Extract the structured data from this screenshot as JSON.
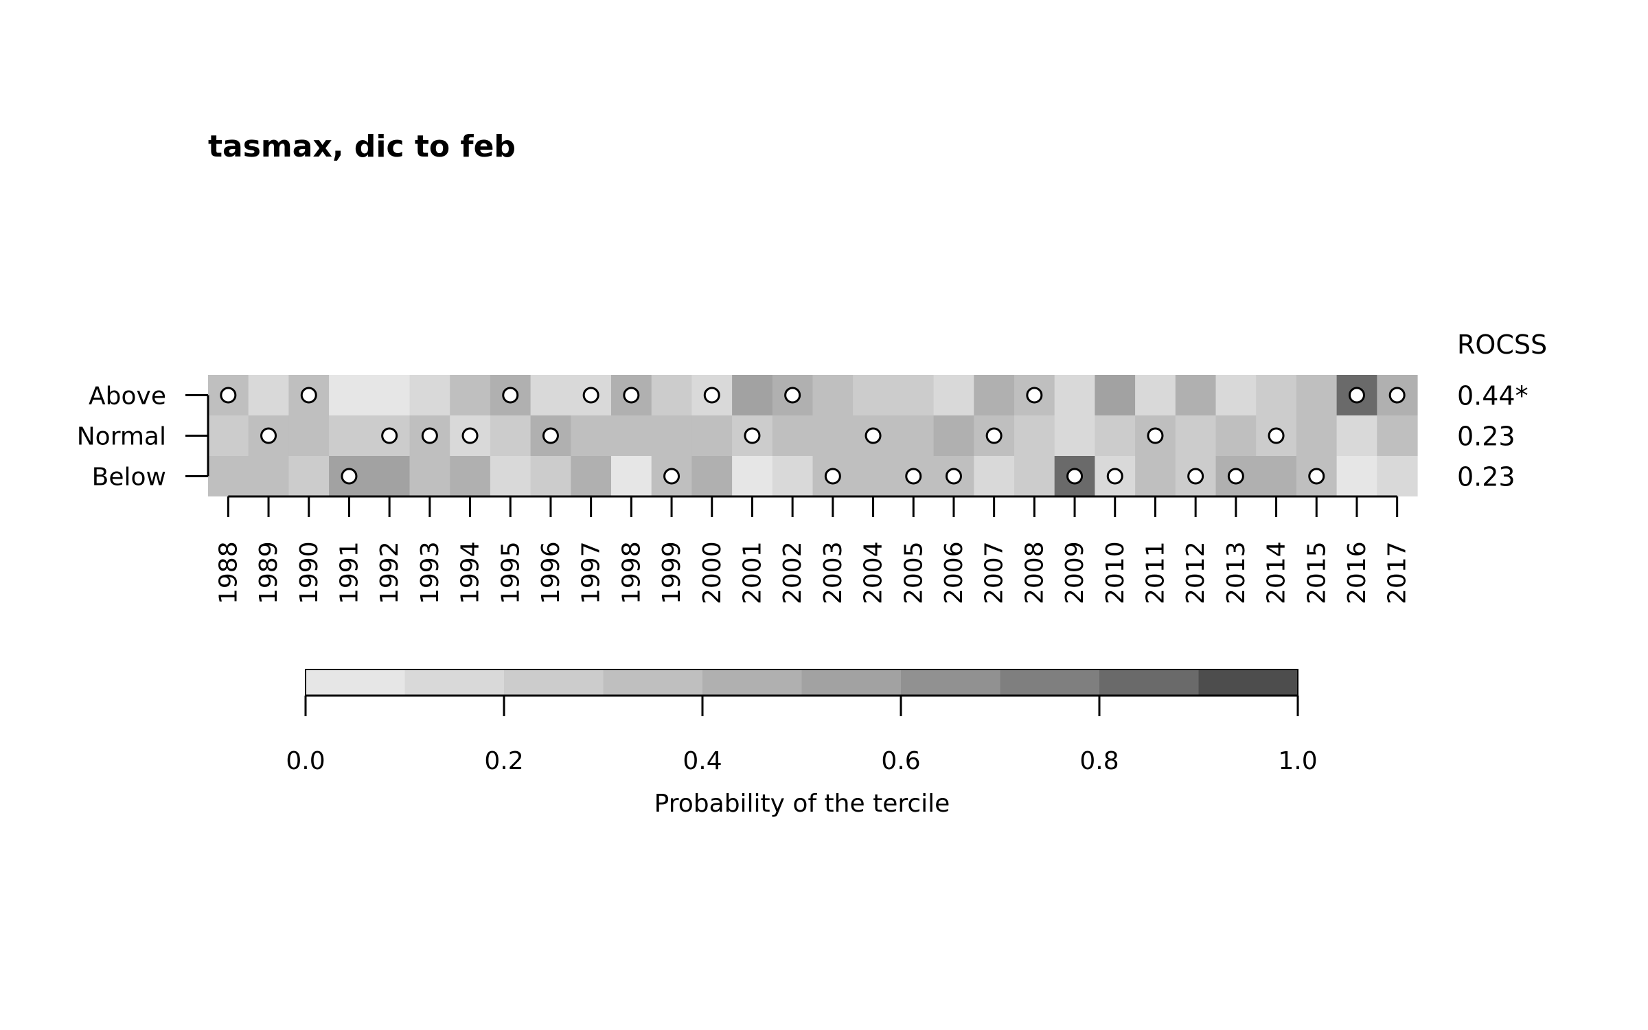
{
  "chart_data": {
    "type": "heatmap",
    "title": "tasmax, dic to feb",
    "years": [
      "1988",
      "1989",
      "1990",
      "1991",
      "1992",
      "1993",
      "1994",
      "1995",
      "1996",
      "1997",
      "1998",
      "1999",
      "2000",
      "2001",
      "2002",
      "2003",
      "2004",
      "2005",
      "2006",
      "2007",
      "2008",
      "2009",
      "2010",
      "2011",
      "2012",
      "2013",
      "2014",
      "2015",
      "2016",
      "2017"
    ],
    "series": [
      {
        "name": "Above",
        "probabilities": [
          0.3,
          0.17,
          0.3,
          0.05,
          0.05,
          0.15,
          0.3,
          0.45,
          0.15,
          0.15,
          0.45,
          0.25,
          0.15,
          0.55,
          0.4,
          0.3,
          0.25,
          0.25,
          0.15,
          0.45,
          0.35,
          0.1,
          0.55,
          0.15,
          0.45,
          0.15,
          0.25,
          0.3,
          0.85,
          0.45
        ],
        "observed": [
          true,
          false,
          true,
          false,
          false,
          false,
          false,
          true,
          false,
          true,
          true,
          false,
          true,
          false,
          true,
          false,
          false,
          false,
          false,
          false,
          true,
          false,
          false,
          false,
          false,
          false,
          false,
          false,
          true,
          true
        ]
      },
      {
        "name": "Normal",
        "probabilities": [
          0.25,
          0.3,
          0.3,
          0.25,
          0.25,
          0.35,
          0.15,
          0.25,
          0.45,
          0.3,
          0.3,
          0.3,
          0.3,
          0.2,
          0.3,
          0.3,
          0.3,
          0.3,
          0.45,
          0.3,
          0.25,
          0.15,
          0.2,
          0.35,
          0.25,
          0.3,
          0.2,
          0.3,
          0.15,
          0.3
        ],
        "observed": [
          false,
          true,
          false,
          false,
          true,
          true,
          true,
          false,
          true,
          false,
          false,
          false,
          false,
          true,
          false,
          false,
          true,
          false,
          false,
          true,
          false,
          false,
          false,
          true,
          false,
          false,
          true,
          false,
          false,
          false
        ]
      },
      {
        "name": "Below",
        "probabilities": [
          0.3,
          0.3,
          0.25,
          0.55,
          0.55,
          0.3,
          0.45,
          0.15,
          0.25,
          0.45,
          0.05,
          0.3,
          0.45,
          0.05,
          0.15,
          0.3,
          0.3,
          0.3,
          0.3,
          0.15,
          0.25,
          0.85,
          0.15,
          0.3,
          0.25,
          0.4,
          0.4,
          0.3,
          0.05,
          0.15
        ],
        "observed": [
          false,
          false,
          false,
          true,
          false,
          false,
          false,
          false,
          false,
          false,
          false,
          true,
          false,
          false,
          false,
          true,
          false,
          true,
          true,
          false,
          false,
          true,
          true,
          false,
          true,
          true,
          false,
          true,
          false,
          false
        ]
      }
    ],
    "rocss_label": "ROCSS",
    "rocss": [
      "0.44*",
      "0.23",
      "0.23"
    ],
    "colorbar": {
      "label": "Probability of the tercile",
      "range": [
        0,
        1
      ],
      "ticks": [
        "0.0",
        "0.2",
        "0.4",
        "0.6",
        "0.8",
        "1.0"
      ],
      "colors": [
        "#e6e6e6",
        "#d9d9d9",
        "#cccccc",
        "#bfbfbf",
        "#b0b0b0",
        "#a2a2a2",
        "#919191",
        "#7f7f7f",
        "#6a6a6a",
        "#4d4d4d"
      ]
    }
  }
}
